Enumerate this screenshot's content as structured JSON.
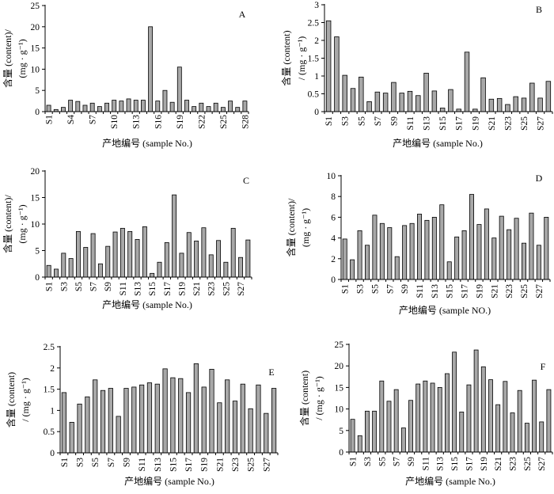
{
  "chart_data": [
    {
      "type": "bar",
      "panel": "A",
      "ylabel_line1": "含量 (content)/",
      "ylabel_line2": "(mg · g⁻¹)",
      "xlabel": "产地编号 (sample No.)",
      "ylim": [
        0,
        25
      ],
      "yticks": [
        0,
        5,
        10,
        15,
        20,
        25
      ],
      "categories": [
        "S1",
        "S2",
        "S3",
        "S4",
        "S5",
        "S6",
        "S7",
        "S8",
        "S9",
        "S10",
        "S11",
        "S12",
        "S13",
        "S14",
        "S15",
        "S16",
        "S17",
        "S18",
        "S19",
        "S20",
        "S21",
        "S22",
        "S23",
        "S24",
        "S25",
        "S26",
        "S27",
        "S28"
      ],
      "xtick_labels": [
        "S1",
        "S4",
        "S7",
        "S10",
        "S13",
        "S16",
        "S19",
        "S22",
        "S25",
        "S28"
      ],
      "values": [
        1.5,
        0.5,
        1.0,
        2.7,
        2.4,
        1.5,
        2.0,
        1.2,
        2.0,
        2.7,
        2.5,
        3.0,
        2.7,
        2.7,
        20.0,
        2.5,
        5.0,
        2.2,
        10.5,
        2.7,
        1.2,
        2.0,
        1.2,
        2.0,
        1.0,
        2.5,
        1.0,
        2.5
      ]
    },
    {
      "type": "bar",
      "panel": "B",
      "ylabel_line1": "含量 (content)",
      "ylabel_line2": "/ (mg · g⁻¹)",
      "xlabel": "产地编号 (sample No.)",
      "ylim": [
        0,
        3
      ],
      "yticks": [
        0,
        0.5,
        1,
        1.5,
        2,
        2.5,
        3
      ],
      "categories": [
        "S1",
        "S2",
        "S3",
        "S4",
        "S5",
        "S6",
        "S7",
        "S8",
        "S9",
        "S10",
        "S11",
        "S12",
        "S13",
        "S14",
        "S15",
        "S16",
        "S17",
        "S18",
        "S19",
        "S20",
        "S21",
        "S22",
        "S23",
        "S24",
        "S25",
        "S26",
        "S27",
        "S28"
      ],
      "xtick_labels": [
        "S1",
        "S3",
        "S5",
        "S7",
        "S9",
        "S11",
        "S13",
        "S15",
        "S17",
        "S19",
        "S21",
        "S23",
        "S25",
        "S27"
      ],
      "values": [
        2.55,
        2.1,
        1.02,
        0.65,
        0.97,
        0.28,
        0.55,
        0.52,
        0.82,
        0.52,
        0.57,
        0.45,
        1.08,
        0.58,
        0.1,
        0.62,
        0.07,
        1.67,
        0.07,
        0.95,
        0.35,
        0.37,
        0.2,
        0.42,
        0.38,
        0.8,
        0.38,
        0.85
      ]
    },
    {
      "type": "bar",
      "panel": "C",
      "ylabel_line1": "含量 (content)/",
      "ylabel_line2": "(mg · g⁻¹)",
      "xlabel": "产地编号 (sample No.)",
      "ylim": [
        0,
        20
      ],
      "yticks": [
        0,
        5,
        10,
        15,
        20
      ],
      "categories": [
        "S1",
        "S2",
        "S3",
        "S4",
        "S5",
        "S6",
        "S7",
        "S8",
        "S9",
        "S10",
        "S11",
        "S12",
        "S13",
        "S14",
        "S15",
        "S16",
        "S17",
        "S18",
        "S19",
        "S20",
        "S21",
        "S22",
        "S23",
        "S24",
        "S25",
        "S26",
        "S27",
        "S28"
      ],
      "xtick_labels": [
        "S1",
        "S3",
        "S5",
        "S7",
        "S9",
        "S11",
        "S13",
        "S15",
        "S17",
        "S19",
        "S21",
        "S23",
        "S25",
        "S27"
      ],
      "values": [
        2.2,
        1.5,
        4.5,
        3.5,
        8.6,
        5.6,
        8.2,
        2.5,
        5.8,
        8.5,
        9.2,
        8.6,
        7.1,
        9.5,
        0.7,
        2.8,
        6.5,
        15.5,
        4.5,
        8.4,
        6.8,
        9.3,
        4.2,
        6.9,
        2.8,
        9.2,
        3.7,
        7.0
      ]
    },
    {
      "type": "bar",
      "panel": "D",
      "ylabel_line1": "含量 (content)/",
      "ylabel_line2": "(mg · g⁻¹)",
      "xlabel": "产地编号 (sample NO.)",
      "ylim": [
        0,
        10
      ],
      "yticks": [
        0,
        2,
        4,
        6,
        8,
        10
      ],
      "categories": [
        "S1",
        "S2",
        "S3",
        "S4",
        "S5",
        "S6",
        "S7",
        "S8",
        "S9",
        "S10",
        "S11",
        "S12",
        "S13",
        "S14",
        "S15",
        "S16",
        "S17",
        "S18",
        "S19",
        "S20",
        "S21",
        "S22",
        "S23",
        "S24",
        "S25",
        "S26",
        "S27",
        "S28"
      ],
      "xtick_labels": [
        "S1",
        "S3",
        "S5",
        "S7",
        "S9",
        "S11",
        "S13",
        "S15",
        "S17",
        "S19",
        "S21",
        "S23",
        "S25",
        "S27"
      ],
      "values": [
        3.9,
        1.9,
        4.7,
        3.3,
        6.2,
        5.4,
        5.0,
        2.2,
        5.2,
        5.4,
        6.3,
        5.7,
        6.0,
        7.2,
        1.7,
        4.1,
        4.7,
        8.2,
        5.3,
        6.8,
        4.0,
        6.1,
        4.8,
        5.9,
        3.5,
        6.4,
        3.3,
        6.0
      ]
    },
    {
      "type": "bar",
      "panel": "E",
      "ylabel_line1": "含量 (content)",
      "ylabel_line2": "/ (mg · g⁻¹)",
      "xlabel": "产地编号 (sample No.)",
      "ylim": [
        0,
        2.5
      ],
      "yticks": [
        0,
        0.5,
        1,
        1.5,
        2,
        2.5
      ],
      "categories": [
        "S1",
        "S2",
        "S3",
        "S4",
        "S5",
        "S6",
        "S7",
        "S8",
        "S9",
        "S10",
        "S11",
        "S12",
        "S13",
        "S14",
        "S15",
        "S16",
        "S17",
        "S18",
        "S19",
        "S20",
        "S21",
        "S22",
        "S23",
        "S24",
        "S25",
        "S26",
        "S27",
        "S28"
      ],
      "xtick_labels": [
        "S1",
        "S3",
        "S5",
        "S7",
        "S9",
        "S11",
        "S13",
        "S15",
        "S17",
        "S19",
        "S21",
        "S23",
        "S25",
        "S27"
      ],
      "values": [
        1.42,
        0.72,
        1.15,
        1.32,
        1.72,
        1.47,
        1.52,
        0.86,
        1.52,
        1.55,
        1.6,
        1.65,
        1.62,
        1.98,
        1.77,
        1.75,
        1.42,
        2.1,
        1.55,
        1.97,
        1.18,
        1.72,
        1.22,
        1.62,
        1.04,
        1.6,
        0.93,
        1.52
      ]
    },
    {
      "type": "bar",
      "panel": "F",
      "ylabel_line1": "含量 (content)",
      "ylabel_line2": "/ (mg · g⁻¹)",
      "xlabel": "产地编号 (sample No.)",
      "ylim": [
        0,
        25
      ],
      "yticks": [
        0,
        5,
        10,
        15,
        20,
        25
      ],
      "categories": [
        "S1",
        "S2",
        "S3",
        "S4",
        "S5",
        "S6",
        "S7",
        "S8",
        "S9",
        "S10",
        "S11",
        "S12",
        "S13",
        "S14",
        "S15",
        "S16",
        "S17",
        "S18",
        "S19",
        "S20",
        "S21",
        "S22",
        "S23",
        "S24",
        "S25",
        "S26",
        "S27",
        "S28"
      ],
      "xtick_labels": [
        "S1",
        "S3",
        "S5",
        "S7",
        "S9",
        "S11",
        "S13",
        "S15",
        "S17",
        "S19",
        "S21",
        "S23",
        "S25",
        "S27"
      ],
      "values": [
        7.6,
        3.8,
        9.5,
        9.5,
        16.5,
        11.8,
        14.5,
        5.6,
        12.0,
        15.8,
        16.5,
        16.0,
        15.0,
        18.2,
        23.2,
        9.3,
        15.6,
        23.7,
        19.8,
        16.8,
        11.0,
        16.4,
        9.1,
        14.3,
        6.7,
        16.7,
        7.0,
        14.5
      ]
    }
  ]
}
